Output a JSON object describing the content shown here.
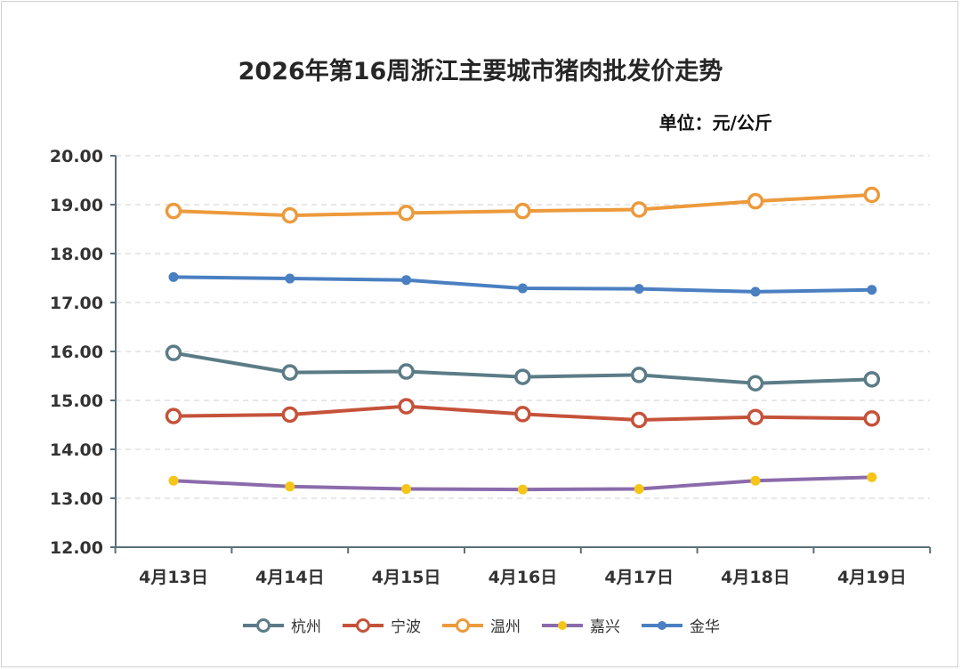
{
  "chart_data": {
    "type": "line",
    "title": "2026年第16周浙江主要城市猪肉批发价走势",
    "unit_label": "单位：元/公斤",
    "categories": [
      "4月13日",
      "4月14日",
      "4月15日",
      "4月16日",
      "4月17日",
      "4月18日",
      "4月19日"
    ],
    "ylim": [
      12.0,
      20.0
    ],
    "y_ticks": [
      "12.00",
      "13.00",
      "14.00",
      "15.00",
      "16.00",
      "17.00",
      "18.00",
      "19.00",
      "20.00"
    ],
    "grid": true,
    "legend_position": "bottom",
    "series": [
      {
        "name": "杭州",
        "color": "#5b7c87",
        "marker": "hollow",
        "values": [
          15.97,
          15.57,
          15.59,
          15.48,
          15.52,
          15.35,
          15.43
        ]
      },
      {
        "name": "宁波",
        "color": "#c5523a",
        "marker": "hollow",
        "values": [
          14.68,
          14.71,
          14.88,
          14.72,
          14.6,
          14.66,
          14.63
        ]
      },
      {
        "name": "温州",
        "color": "#ec9a3c",
        "marker": "hollow",
        "values": [
          18.87,
          18.78,
          18.83,
          18.87,
          18.9,
          19.07,
          19.2
        ]
      },
      {
        "name": "嘉兴",
        "color": "#8b6bab",
        "marker_color": "#f5c518",
        "marker": "filled-small",
        "values": [
          13.36,
          13.24,
          13.19,
          13.18,
          13.19,
          13.36,
          13.43
        ]
      },
      {
        "name": "金华",
        "color": "#4a7fc1",
        "marker": "filled",
        "values": [
          17.52,
          17.49,
          17.46,
          17.29,
          17.28,
          17.22,
          17.26
        ]
      }
    ]
  }
}
